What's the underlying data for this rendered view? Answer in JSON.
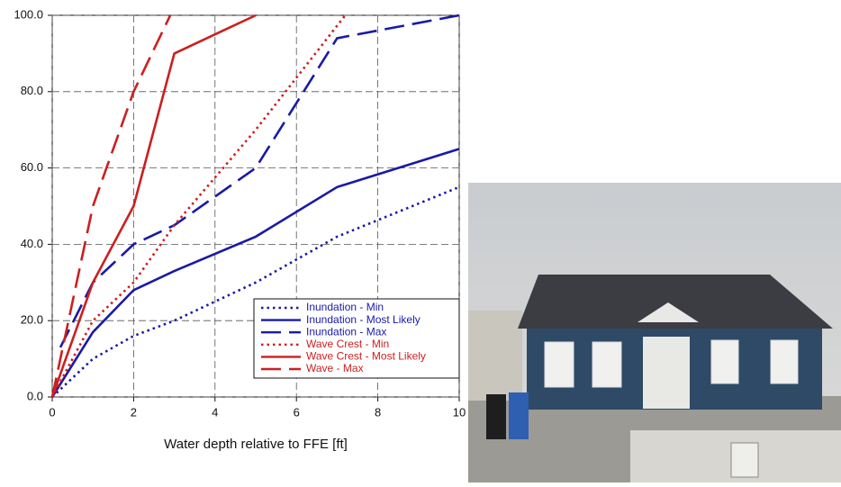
{
  "chart_data": {
    "type": "line",
    "xlabel": "Water depth relative to FFE [ft]",
    "xlim": [
      0,
      10
    ],
    "xticks": [
      0,
      2,
      4,
      6,
      8,
      10
    ],
    "ylim": [
      0,
      100
    ],
    "yticks": [
      {
        "value": 0,
        "label": "0.0"
      },
      {
        "value": 20,
        "label": "20.0"
      },
      {
        "value": 40,
        "label": "40.0"
      },
      {
        "value": 60,
        "label": "60.0"
      },
      {
        "value": 80,
        "label": "80.0"
      },
      {
        "value": 100,
        "label": "100.0"
      }
    ],
    "grid": true,
    "legend": "lower right",
    "series": [
      {
        "name": "Inundation - Min",
        "color": "#1a1aa6",
        "linestyle": "dotted",
        "x": [
          0,
          1,
          2,
          3,
          5,
          7,
          10
        ],
        "values": [
          0,
          10,
          16,
          20,
          30,
          42,
          55
        ]
      },
      {
        "name": "Inundation - Most Likely",
        "color": "#1a1aa6",
        "linestyle": "solid",
        "x": [
          0,
          1,
          2,
          3,
          5,
          7,
          10
        ],
        "values": [
          0,
          17,
          28,
          33,
          42,
          55,
          65
        ]
      },
      {
        "name": "Inundation - Max",
        "color": "#1a1aa6",
        "linestyle": "dashed",
        "x": [
          0.2,
          1,
          2,
          3,
          5,
          7,
          10
        ],
        "values": [
          13,
          30,
          40,
          45,
          60,
          94,
          100
        ]
      },
      {
        "name": "Wave Crest - Min",
        "color": "#cc1f1f",
        "linestyle": "dotted",
        "x": [
          0,
          1,
          2,
          3,
          5,
          7.2
        ],
        "values": [
          0,
          20,
          30,
          45,
          70,
          100
        ]
      },
      {
        "name": "Wave Crest - Most Likely",
        "color": "#cc1f1f",
        "linestyle": "solid",
        "x": [
          0,
          1,
          2,
          3,
          5
        ],
        "values": [
          0,
          30,
          50,
          90,
          100
        ]
      },
      {
        "name": "Wave - Max",
        "color": "#cc1f1f",
        "linestyle": "dashed",
        "x": [
          0,
          1,
          2,
          2.9
        ],
        "values": [
          0,
          50,
          80,
          100
        ]
      }
    ]
  }
}
